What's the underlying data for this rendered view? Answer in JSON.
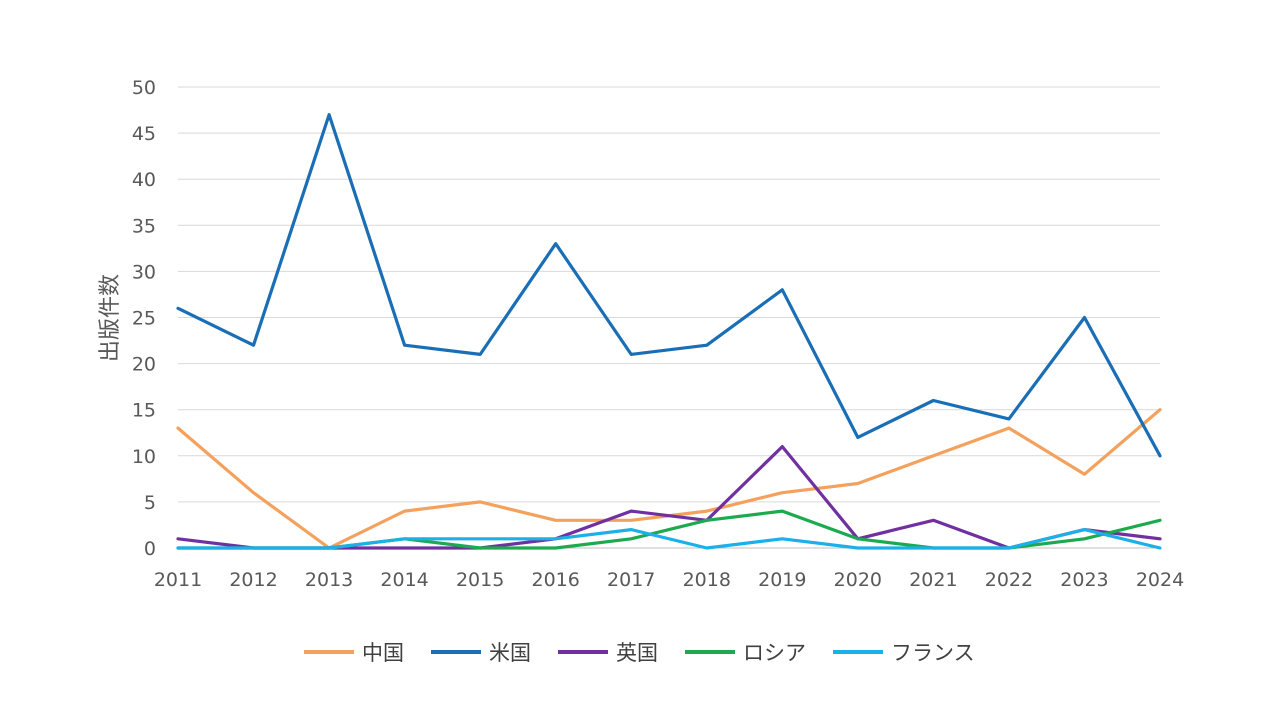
{
  "chart_data": {
    "type": "line",
    "title": "",
    "xlabel": "",
    "ylabel": "出版件数",
    "ylim": [
      0,
      50
    ],
    "yticks": [
      0,
      5,
      10,
      15,
      20,
      25,
      30,
      35,
      40,
      45,
      50
    ],
    "grid": true,
    "legend_position": "bottom",
    "categories": [
      "2011",
      "2012",
      "2013",
      "2014",
      "2015",
      "2016",
      "2017",
      "2018",
      "2019",
      "2020",
      "2021",
      "2022",
      "2023",
      "2024"
    ],
    "series": [
      {
        "name": "中国",
        "color": "#F4A15D",
        "values": [
          13,
          6,
          0,
          4,
          5,
          3,
          3,
          4,
          6,
          7,
          10,
          13,
          8,
          15
        ]
      },
      {
        "name": "米国",
        "color": "#1A6EB5",
        "values": [
          26,
          22,
          47,
          22,
          21,
          33,
          21,
          22,
          28,
          12,
          16,
          14,
          25,
          10
        ]
      },
      {
        "name": "英国",
        "color": "#7030A0",
        "values": [
          1,
          0,
          0,
          0,
          0,
          1,
          4,
          3,
          11,
          1,
          3,
          0,
          2,
          1
        ]
      },
      {
        "name": "ロシア",
        "color": "#1DAA4F",
        "values": [
          0,
          0,
          0,
          1,
          0,
          0,
          1,
          3,
          4,
          1,
          0,
          0,
          1,
          3
        ]
      },
      {
        "name": "フランス",
        "color": "#1CB0E8",
        "values": [
          0,
          0,
          0,
          1,
          1,
          1,
          2,
          0,
          1,
          0,
          0,
          0,
          2,
          0
        ]
      }
    ]
  }
}
